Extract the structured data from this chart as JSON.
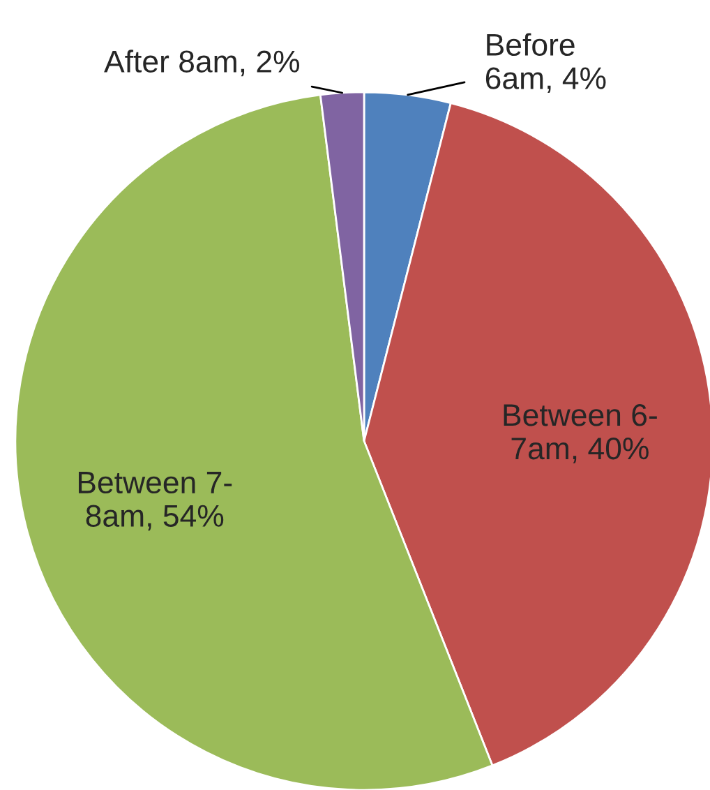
{
  "chart_data": {
    "type": "pie",
    "categories": [
      "Before\n6am",
      "Between 6-\n7am",
      "Between 7-\n8am",
      "After 8am"
    ],
    "values": [
      4,
      40,
      54,
      2
    ],
    "colors": [
      "#4f81bd",
      "#c0504d",
      "#9bbb59",
      "#8064a2"
    ],
    "value_labels": [
      "4%",
      "40%",
      "54%",
      "2%"
    ],
    "legend": false
  }
}
